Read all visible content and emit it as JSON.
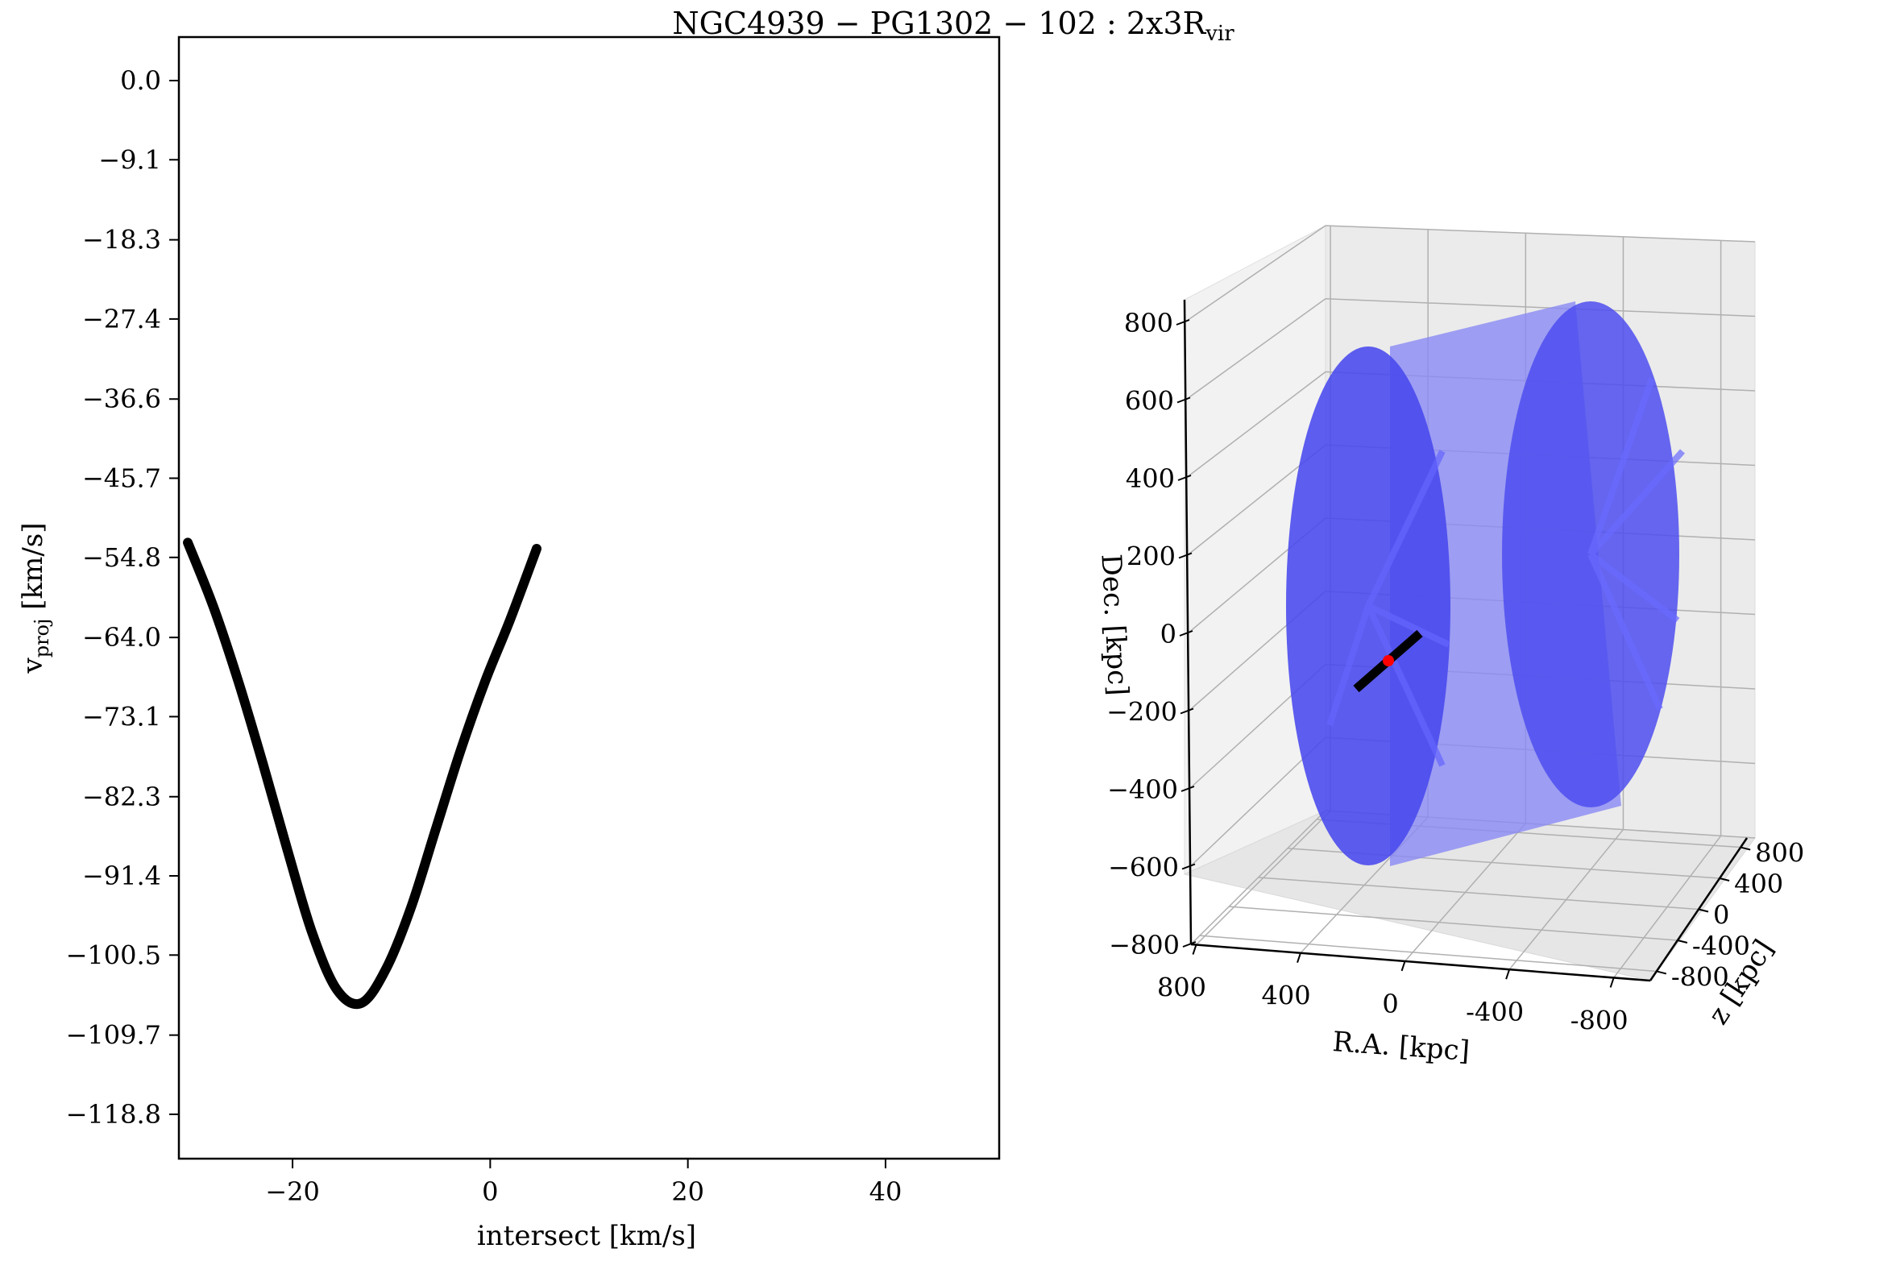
{
  "title": {
    "main": "NGC4939 − PG1302 − 102 :  2x3R",
    "subscript": "vir"
  },
  "chart_data": [
    {
      "type": "line",
      "xlabel": "intersect [km/s]",
      "ylabel": "v",
      "ylabel_subscript": "proj",
      "ylabel_units": " [km/s]",
      "xlim": [
        -31.5,
        51.5
      ],
      "ylim": [
        -123.9,
        5.0
      ],
      "x_ticks": [
        -20,
        0,
        20,
        40
      ],
      "x_tick_labels": [
        "−20",
        "0",
        "20",
        "40"
      ],
      "y_ticks": [
        0.0,
        -9.1,
        -18.3,
        -27.4,
        -36.6,
        -45.7,
        -54.8,
        -64.0,
        -73.1,
        -82.3,
        -91.4,
        -100.5,
        -109.7,
        -118.8
      ],
      "y_tick_labels": [
        "0.0",
        "−9.1",
        "−18.3",
        "−27.4",
        "−36.6",
        "−45.7",
        "−54.8",
        "−64.0",
        "−73.1",
        "−82.3",
        "−91.4",
        "−100.5",
        "−109.7",
        "−118.8"
      ],
      "series": [
        {
          "color": "#000000",
          "x": [
            -30.6,
            -28.0,
            -25.5,
            -23.0,
            -20.5,
            -18.0,
            -15.5,
            -13.0,
            -10.5,
            -8.0,
            -5.5,
            -3.0,
            -0.5,
            2.0,
            4.7
          ],
          "y": [
            -53.1,
            -60.5,
            -69.0,
            -78.5,
            -88.5,
            -98.0,
            -104.5,
            -106.0,
            -102.0,
            -95.0,
            -86.0,
            -77.0,
            -69.0,
            -62.0,
            -53.8
          ]
        }
      ],
      "grid": false
    },
    {
      "type": "3d-surface",
      "xlabel": "R.A. [kpc]",
      "ylabel": "z [kpc]",
      "zlabel": "Dec. [kpc]",
      "x_tick_labels": [
        "800",
        "400",
        "0",
        "-400",
        "-800"
      ],
      "y_tick_labels": [
        "800",
        "400",
        "0",
        "-400",
        "-800"
      ],
      "z_tick_labels": [
        "800",
        "600",
        "400",
        "200",
        "0",
        "−200",
        "−400",
        "−600",
        "−800"
      ],
      "shape": "cylinder",
      "cylinder_color": "#4d4dff",
      "sightline_color": "#000000",
      "marker_color": "#ff0000",
      "grid": true
    }
  ]
}
